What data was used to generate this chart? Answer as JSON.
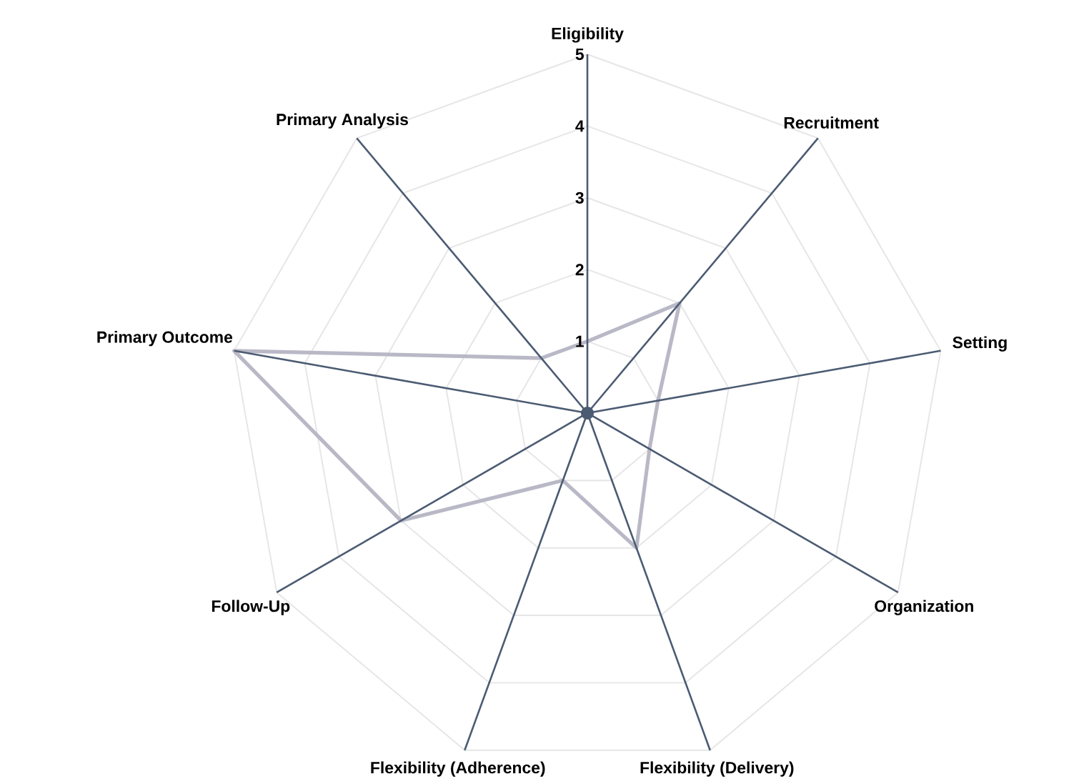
{
  "chart_data": {
    "type": "radar",
    "categories": [
      "Eligibility",
      "Recruitment",
      "Setting",
      "Organization",
      "Flexibility (Delivery)",
      "Flexibility (Adherence)",
      "Follow-Up",
      "Primary Outcome",
      "Primary Analysis"
    ],
    "series": [
      {
        "color": "#b9b8c6",
        "values": [
          1,
          2,
          1,
          1,
          2,
          1,
          3,
          5,
          1
        ]
      }
    ],
    "ylim": [
      0,
      5
    ],
    "yticks": [
      1,
      2,
      3,
      4,
      5
    ],
    "grid": true
  }
}
